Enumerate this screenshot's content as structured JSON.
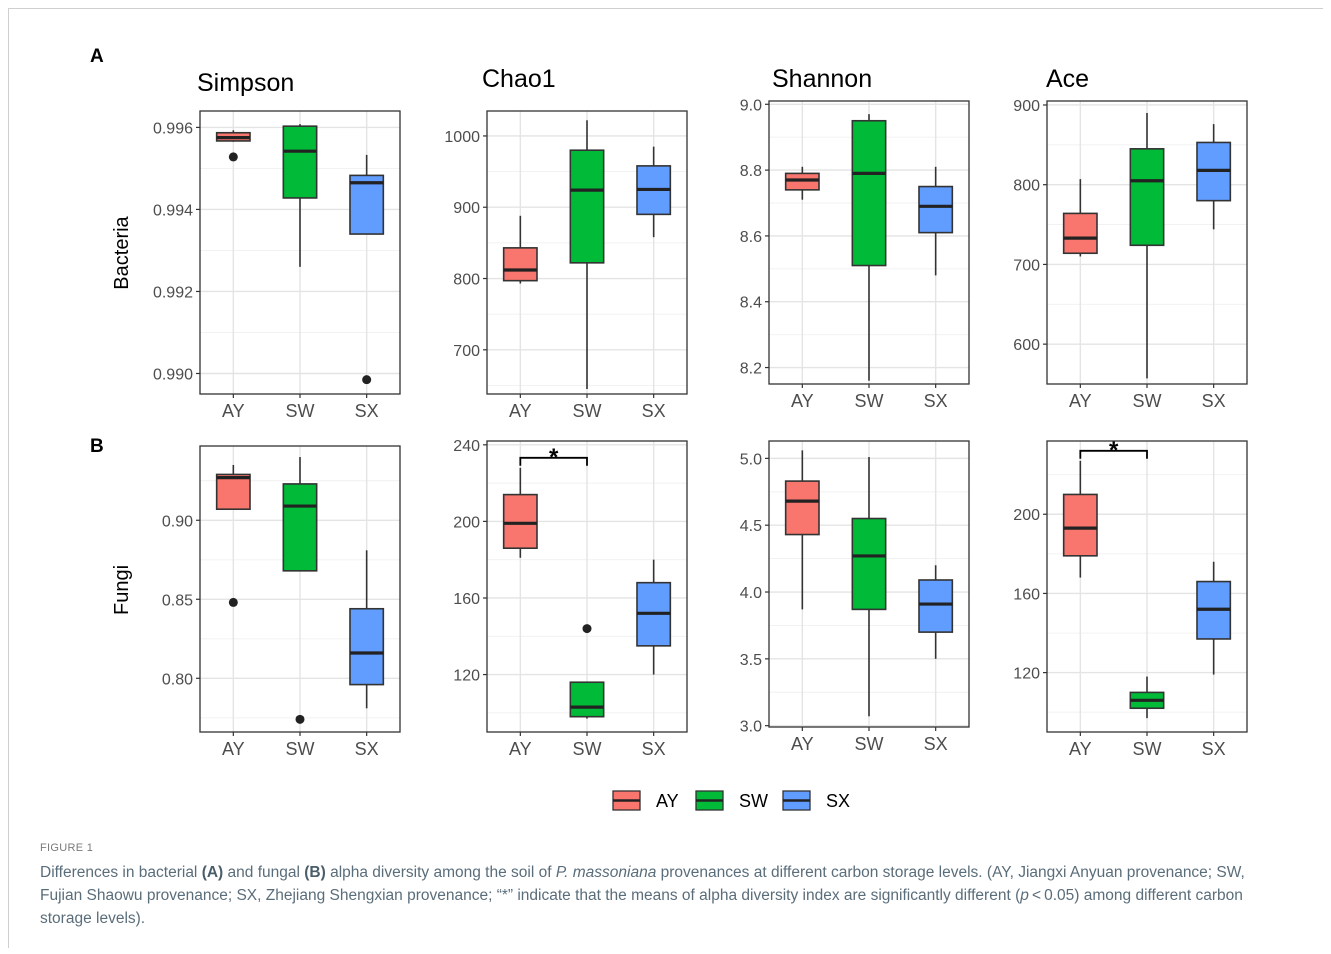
{
  "panel_labels": [
    "A",
    "B"
  ],
  "row_labels": [
    "Bacteria",
    "Fungi"
  ],
  "column_titles": [
    "Simpson",
    "Chao1",
    "Shannon",
    "Ace"
  ],
  "groups": [
    "AY",
    "SW",
    "SX"
  ],
  "colors": {
    "AY": "#F8766D",
    "SW": "#00BA38",
    "SX": "#619CFF"
  },
  "legend": [
    {
      "label": "AY",
      "color": "#F8766D"
    },
    {
      "label": "SW",
      "color": "#00BA38"
    },
    {
      "label": "SX",
      "color": "#619CFF"
    }
  ],
  "chart_data": [
    {
      "type": "box",
      "row": "Bacteria",
      "title": "Simpson",
      "ylabel": "Bacteria",
      "ylim": [
        0.9895,
        0.9964
      ],
      "yticks": [
        "0.990",
        "0.992",
        "0.994",
        "0.996"
      ],
      "ytick_values": [
        0.99,
        0.992,
        0.994,
        0.996
      ],
      "categories": [
        "AY",
        "SW",
        "SX"
      ],
      "boxes": [
        {
          "group": "AY",
          "min": 0.99565,
          "q1": 0.99567,
          "median": 0.99575,
          "q3": 0.99587,
          "max": 0.99593,
          "outliers": [
            0.99528
          ]
        },
        {
          "group": "SW",
          "min": 0.9926,
          "q1": 0.99428,
          "median": 0.99542,
          "q3": 0.99603,
          "max": 0.99608,
          "outliers": []
        },
        {
          "group": "SX",
          "min": 0.9934,
          "q1": 0.9934,
          "median": 0.99465,
          "q3": 0.99483,
          "max": 0.99533,
          "outliers": [
            0.98985
          ]
        }
      ],
      "significance": []
    },
    {
      "type": "box",
      "row": "Bacteria",
      "title": "Chao1",
      "ylim": [
        638,
        1035
      ],
      "yticks": [
        "700",
        "800",
        "900",
        "1000"
      ],
      "ytick_values": [
        700,
        800,
        900,
        1000
      ],
      "categories": [
        "AY",
        "SW",
        "SX"
      ],
      "boxes": [
        {
          "group": "AY",
          "min": 793,
          "q1": 797,
          "median": 812,
          "q3": 843,
          "max": 888,
          "outliers": []
        },
        {
          "group": "SW",
          "min": 645,
          "q1": 822,
          "median": 924,
          "q3": 980,
          "max": 1022,
          "outliers": []
        },
        {
          "group": "SX",
          "min": 858,
          "q1": 890,
          "median": 925,
          "q3": 958,
          "max": 985,
          "outliers": []
        }
      ],
      "significance": []
    },
    {
      "type": "box",
      "row": "Bacteria",
      "title": "Shannon",
      "ylim": [
        8.15,
        9.01
      ],
      "yticks": [
        "8.2",
        "8.4",
        "8.6",
        "8.8",
        "9.0"
      ],
      "ytick_values": [
        8.2,
        8.4,
        8.6,
        8.8,
        9.0
      ],
      "categories": [
        "AY",
        "SW",
        "SX"
      ],
      "boxes": [
        {
          "group": "AY",
          "min": 8.71,
          "q1": 8.74,
          "median": 8.77,
          "q3": 8.79,
          "max": 8.81,
          "outliers": []
        },
        {
          "group": "SW",
          "min": 8.16,
          "q1": 8.51,
          "median": 8.79,
          "q3": 8.95,
          "max": 8.97,
          "outliers": []
        },
        {
          "group": "SX",
          "min": 8.48,
          "q1": 8.61,
          "median": 8.69,
          "q3": 8.75,
          "max": 8.81,
          "outliers": []
        }
      ],
      "significance": []
    },
    {
      "type": "box",
      "row": "Bacteria",
      "title": "Ace",
      "ylim": [
        550,
        905
      ],
      "yticks": [
        "600",
        "700",
        "800",
        "900"
      ],
      "ytick_values": [
        600,
        700,
        800,
        900
      ],
      "categories": [
        "AY",
        "SW",
        "SX"
      ],
      "boxes": [
        {
          "group": "AY",
          "min": 710,
          "q1": 714,
          "median": 733,
          "q3": 764,
          "max": 807,
          "outliers": []
        },
        {
          "group": "SW",
          "min": 557,
          "q1": 724,
          "median": 805,
          "q3": 845,
          "max": 890,
          "outliers": []
        },
        {
          "group": "SX",
          "min": 744,
          "q1": 780,
          "median": 818,
          "q3": 853,
          "max": 876,
          "outliers": []
        }
      ],
      "significance": []
    },
    {
      "type": "box",
      "row": "Fungi",
      "title": "",
      "ylabel": "Fungi",
      "ylim": [
        0.766,
        0.947
      ],
      "yticks": [
        "0.80",
        "0.85",
        "0.90"
      ],
      "ytick_values": [
        0.8,
        0.85,
        0.9
      ],
      "categories": [
        "AY",
        "SW",
        "SX"
      ],
      "boxes": [
        {
          "group": "AY",
          "min": 0.907,
          "q1": 0.907,
          "median": 0.927,
          "q3": 0.929,
          "max": 0.935,
          "outliers": [
            0.848
          ]
        },
        {
          "group": "SW",
          "min": 0.868,
          "q1": 0.868,
          "median": 0.909,
          "q3": 0.923,
          "max": 0.94,
          "outliers": [
            0.774
          ]
        },
        {
          "group": "SX",
          "min": 0.781,
          "q1": 0.796,
          "median": 0.816,
          "q3": 0.844,
          "max": 0.881,
          "outliers": []
        }
      ],
      "significance": []
    },
    {
      "type": "box",
      "row": "Fungi",
      "title": "",
      "ylim": [
        90,
        242
      ],
      "yticks": [
        "120",
        "160",
        "200",
        "240"
      ],
      "ytick_values": [
        120,
        160,
        200,
        240
      ],
      "categories": [
        "AY",
        "SW",
        "SX"
      ],
      "boxes": [
        {
          "group": "AY",
          "min": 181,
          "q1": 186,
          "median": 199,
          "q3": 214,
          "max": 228,
          "outliers": []
        },
        {
          "group": "SW",
          "min": 97,
          "q1": 98,
          "median": 103,
          "q3": 116,
          "max": 116,
          "outliers": [
            144
          ]
        },
        {
          "group": "SX",
          "min": 120,
          "q1": 135,
          "median": 152,
          "q3": 168,
          "max": 180,
          "outliers": []
        }
      ],
      "significance": [
        {
          "from": "AY",
          "to": "SW",
          "label": "*"
        }
      ]
    },
    {
      "type": "box",
      "row": "Fungi",
      "title": "",
      "ylim": [
        2.99,
        5.13
      ],
      "yticks": [
        "3.0",
        "3.5",
        "4.0",
        "4.5",
        "5.0"
      ],
      "ytick_values": [
        3.0,
        3.5,
        4.0,
        4.5,
        5.0
      ],
      "categories": [
        "AY",
        "SW",
        "SX"
      ],
      "boxes": [
        {
          "group": "AY",
          "min": 3.87,
          "q1": 4.43,
          "median": 4.68,
          "q3": 4.83,
          "max": 5.06,
          "outliers": []
        },
        {
          "group": "SW",
          "min": 3.07,
          "q1": 3.87,
          "median": 4.27,
          "q3": 4.55,
          "max": 5.01,
          "outliers": []
        },
        {
          "group": "SX",
          "min": 3.5,
          "q1": 3.7,
          "median": 3.91,
          "q3": 4.09,
          "max": 4.2,
          "outliers": []
        }
      ],
      "significance": []
    },
    {
      "type": "box",
      "row": "Fungi",
      "title": "",
      "ylim": [
        90,
        237
      ],
      "yticks": [
        "120",
        "160",
        "200"
      ],
      "ytick_values": [
        120,
        160,
        200
      ],
      "categories": [
        "AY",
        "SW",
        "SX"
      ],
      "boxes": [
        {
          "group": "AY",
          "min": 168,
          "q1": 179,
          "median": 193,
          "q3": 210,
          "max": 227,
          "outliers": []
        },
        {
          "group": "SW",
          "min": 97,
          "q1": 102,
          "median": 106,
          "q3": 110,
          "max": 118,
          "outliers": []
        },
        {
          "group": "SX",
          "min": 119,
          "q1": 137,
          "median": 152,
          "q3": 166,
          "max": 176,
          "outliers": []
        }
      ],
      "significance": [
        {
          "from": "AY",
          "to": "SW",
          "label": "*"
        }
      ]
    }
  ],
  "figure_label": "FIGURE 1",
  "caption": {
    "part1": "Differences in bacterial ",
    "bold_a": "(A)",
    "part2": " and fungal ",
    "bold_b": "(B)",
    "part3": " alpha diversity among the soil of ",
    "italic_species": "P. massoniana",
    "part4": " provenances at different carbon storage levels. (AY, Jiangxi Anyuan provenance; SW, Fujian Shaowu provenance; SX, Zhejiang Shengxian provenance; “*” indicate that the means of alpha diversity index are significantly different (",
    "italic_p": "p",
    "part5": " < 0.05) among different carbon storage levels)."
  }
}
